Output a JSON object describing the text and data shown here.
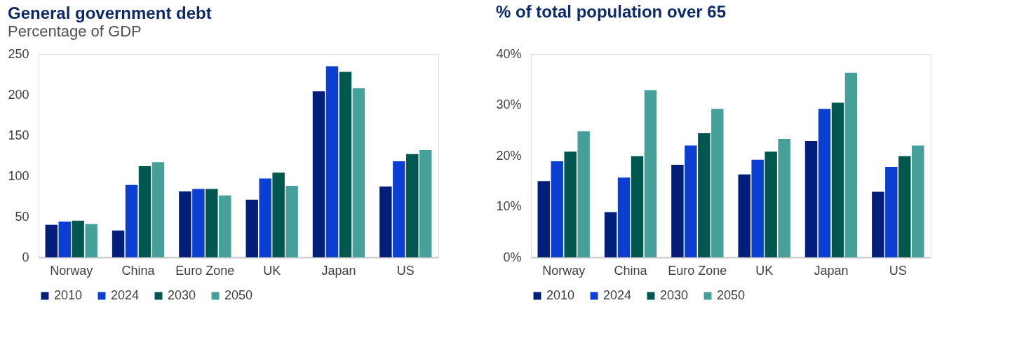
{
  "chart_data": [
    {
      "type": "bar",
      "title": "General government debt",
      "subtitle": "Percentage of GDP",
      "categories": [
        "Norway",
        "China",
        "Euro Zone",
        "UK",
        "Japan",
        "US"
      ],
      "series": [
        {
          "name": "2010",
          "color": "#001e7a",
          "values": [
            40,
            33,
            81,
            71,
            204,
            87
          ]
        },
        {
          "name": "2024",
          "color": "#0a3fd1",
          "values": [
            44,
            89,
            84,
            97,
            235,
            118
          ]
        },
        {
          "name": "2030",
          "color": "#00574f",
          "values": [
            45,
            112,
            84,
            104,
            228,
            127
          ]
        },
        {
          "name": "2050",
          "color": "#45a09a",
          "values": [
            41,
            117,
            76,
            88,
            208,
            132
          ]
        }
      ],
      "ylim": [
        0,
        250
      ],
      "yticks": [
        0,
        50,
        100,
        150,
        200,
        250
      ],
      "grid": false,
      "legend": "bottom"
    },
    {
      "type": "bar",
      "title": "% of total population over 65",
      "categories": [
        "Norway",
        "China",
        "Euro Zone",
        "UK",
        "Japan",
        "US"
      ],
      "series": [
        {
          "name": "2010",
          "color": "#001e7a",
          "values": [
            15.0,
            8.9,
            18.2,
            16.3,
            22.9,
            12.9
          ]
        },
        {
          "name": "2024",
          "color": "#0a3fd1",
          "values": [
            18.9,
            15.7,
            22.0,
            19.2,
            29.2,
            17.8
          ]
        },
        {
          "name": "2030",
          "color": "#00574f",
          "values": [
            20.8,
            19.9,
            24.4,
            20.8,
            30.4,
            19.9
          ]
        },
        {
          "name": "2050",
          "color": "#45a09a",
          "values": [
            24.8,
            32.9,
            29.2,
            23.3,
            36.3,
            22.0
          ]
        }
      ],
      "ylim": [
        0,
        40
      ],
      "yticks": [
        {
          "value": 0,
          "label": "0%"
        },
        {
          "value": 10,
          "label": "10%"
        },
        {
          "value": 20,
          "label": "20%"
        },
        {
          "value": 30,
          "label": "30%"
        },
        {
          "value": 40,
          "label": "40%"
        }
      ],
      "grid": false,
      "legend": "bottom"
    }
  ]
}
